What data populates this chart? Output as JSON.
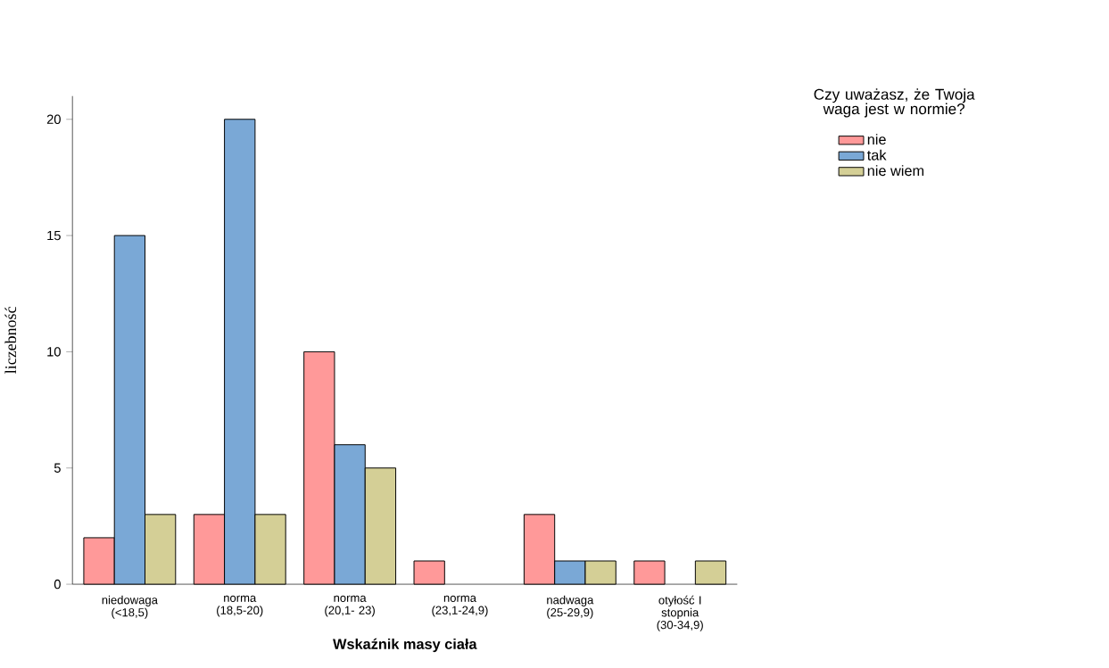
{
  "chart_data": {
    "type": "bar",
    "xlabel": "Wskaźnik masy ciała",
    "ylabel": "liczebność",
    "legend_title": "Czy uważasz, że Twoja waga jest w normie?",
    "categories": [
      "niedowaga (<18,5)",
      "norma (18,5-20)",
      "norma (20,1- 23)",
      "norma (23,1-24,9)",
      "nadwaga (25-29,9)",
      "otyłość I stopnia (30-34,9)"
    ],
    "series": [
      {
        "name": "nie",
        "color": "#ff9999",
        "values": [
          2,
          3,
          10,
          1,
          3,
          1
        ]
      },
      {
        "name": "tak",
        "color": "#7aa8d6",
        "values": [
          15,
          20,
          6,
          0,
          1,
          0
        ]
      },
      {
        "name": "nie wiem",
        "color": "#d4cf96",
        "values": [
          3,
          3,
          5,
          0,
          1,
          1
        ]
      }
    ],
    "ylim": [
      0,
      21
    ],
    "yticks": [
      0,
      5,
      10,
      15,
      20
    ],
    "grid": false,
    "legend": "top right"
  }
}
